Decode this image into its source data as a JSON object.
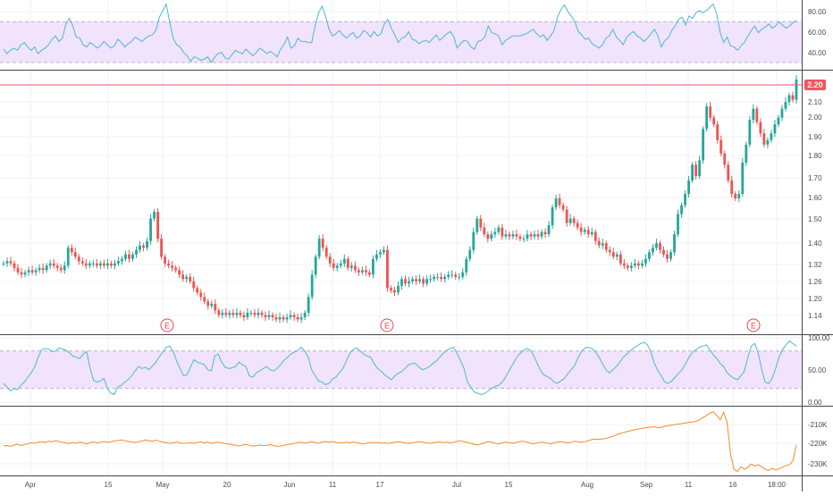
{
  "colors": {
    "background": "#ffffff",
    "grid": "#eef1f5",
    "divider": "#434651",
    "up_candle": "#26a69a",
    "down_candle": "#ef5350",
    "rsi_line": "#4bb8d4",
    "band_fill": "#f1e3fc",
    "band_line": "#b9b3c4",
    "obv_line": "#f28c28",
    "price_line": "#f7525f",
    "axis_text": "#4a4a4a",
    "earnings_marker": "#e8484f"
  },
  "x_axis": {
    "labels": [
      "Apr",
      "15",
      "May",
      "20",
      "Jun",
      "11",
      "17",
      "Jul",
      "15",
      "Aug",
      "Sep",
      "11",
      "16",
      "18:00"
    ]
  },
  "earnings_markers": [
    "E",
    "E",
    "E"
  ],
  "current_price_label": "2.20",
  "chart_data": [
    {
      "type": "line",
      "pane": "oscillator-top",
      "ylim": [
        28,
        88
      ],
      "ticks": [
        "40.00",
        "60.00",
        "80.00"
      ],
      "band": [
        33,
        70
      ],
      "series": [
        {
          "values": [
            45,
            41,
            44,
            46,
            44,
            49,
            51,
            47,
            44,
            47,
            41,
            44,
            46,
            49,
            54,
            57,
            52,
            55,
            68,
            73,
            66,
            56,
            55,
            49,
            47,
            51,
            49,
            46,
            48,
            52,
            49,
            46,
            48,
            54,
            51,
            47,
            50,
            52,
            56,
            54,
            52,
            55,
            57,
            58,
            62,
            74,
            80,
            86,
            69,
            55,
            49,
            47,
            42,
            39,
            34,
            38,
            37,
            35,
            36,
            38,
            33,
            38,
            41,
            42,
            37,
            36,
            40,
            44,
            42,
            41,
            45,
            42,
            39,
            42,
            46,
            44,
            41,
            43,
            41,
            38,
            45,
            49,
            56,
            46,
            48,
            55,
            52,
            52,
            51,
            51,
            66,
            78,
            84,
            75,
            63,
            57,
            59,
            62,
            58,
            55,
            58,
            60,
            55,
            57,
            62,
            60,
            56,
            61,
            57,
            59,
            68,
            72,
            64,
            58,
            51,
            55,
            56,
            61,
            54,
            53,
            50,
            52,
            53,
            51,
            55,
            58,
            53,
            56,
            59,
            61,
            57,
            46,
            50,
            53,
            52,
            47,
            45,
            52,
            53,
            56,
            66,
            60,
            59,
            57,
            49,
            53,
            55,
            57,
            57,
            57,
            58,
            59,
            61,
            63,
            59,
            56,
            58,
            53,
            57,
            62,
            74,
            81,
            85,
            79,
            75,
            70,
            61,
            58,
            54,
            55,
            50,
            48,
            46,
            49,
            55,
            57,
            63,
            56,
            53,
            49,
            56,
            59,
            61,
            57,
            55,
            52,
            55,
            59,
            63,
            57,
            47,
            53,
            55,
            62,
            66,
            72,
            74,
            67,
            75,
            73,
            78,
            80,
            78,
            80,
            83,
            86,
            77,
            60,
            51,
            56,
            48,
            47,
            44,
            48,
            51,
            57,
            62,
            66,
            60,
            63,
            65,
            68,
            64,
            66,
            70,
            67,
            64,
            66,
            69,
            71
          ]
        }
      ]
    },
    {
      "type": "bar",
      "pane": "price",
      "subtype": "candlestick",
      "ylim": [
        1.08,
        2.22
      ],
      "ticks": [
        "1.14",
        "1.20",
        "1.26",
        "1.32",
        "1.40",
        "1.50",
        "1.60",
        "1.70",
        "1.80",
        "1.90",
        "2.00",
        "2.10",
        "2.20"
      ],
      "series": [
        {
          "name": "close",
          "values": [
            1.38,
            1.39,
            1.38,
            1.36,
            1.34,
            1.33,
            1.34,
            1.35,
            1.34,
            1.35,
            1.36,
            1.35,
            1.37,
            1.38,
            1.37,
            1.36,
            1.35,
            1.37,
            1.45,
            1.43,
            1.41,
            1.39,
            1.38,
            1.37,
            1.38,
            1.38,
            1.37,
            1.38,
            1.37,
            1.38,
            1.37,
            1.38,
            1.39,
            1.4,
            1.42,
            1.4,
            1.42,
            1.44,
            1.46,
            1.45,
            1.48,
            1.58,
            1.61,
            1.49,
            1.41,
            1.38,
            1.37,
            1.36,
            1.35,
            1.33,
            1.31,
            1.32,
            1.3,
            1.27,
            1.25,
            1.23,
            1.21,
            1.19,
            1.2,
            1.17,
            1.15,
            1.16,
            1.15,
            1.16,
            1.15,
            1.16,
            1.15,
            1.14,
            1.16,
            1.16,
            1.15,
            1.16,
            1.15,
            1.14,
            1.15,
            1.14,
            1.13,
            1.14,
            1.13,
            1.14,
            1.15,
            1.14,
            1.13,
            1.14,
            1.16,
            1.23,
            1.33,
            1.41,
            1.49,
            1.45,
            1.41,
            1.38,
            1.36,
            1.37,
            1.38,
            1.4,
            1.36,
            1.37,
            1.35,
            1.34,
            1.35,
            1.34,
            1.33,
            1.4,
            1.42,
            1.43,
            1.44,
            1.27,
            1.26,
            1.25,
            1.28,
            1.31,
            1.29,
            1.3,
            1.31,
            1.3,
            1.31,
            1.29,
            1.31,
            1.31,
            1.32,
            1.32,
            1.31,
            1.32,
            1.33,
            1.33,
            1.32,
            1.32,
            1.34,
            1.4,
            1.44,
            1.52,
            1.58,
            1.54,
            1.51,
            1.49,
            1.51,
            1.52,
            1.54,
            1.5,
            1.51,
            1.5,
            1.51,
            1.5,
            1.49,
            1.49,
            1.51,
            1.5,
            1.51,
            1.5,
            1.52,
            1.51,
            1.55,
            1.63,
            1.67,
            1.64,
            1.62,
            1.56,
            1.58,
            1.56,
            1.54,
            1.52,
            1.53,
            1.51,
            1.52,
            1.48,
            1.46,
            1.47,
            1.44,
            1.43,
            1.41,
            1.42,
            1.38,
            1.37,
            1.36,
            1.37,
            1.38,
            1.37,
            1.38,
            1.4,
            1.43,
            1.45,
            1.47,
            1.44,
            1.42,
            1.4,
            1.43,
            1.51,
            1.6,
            1.64,
            1.69,
            1.75,
            1.82,
            1.77,
            1.84,
            1.98,
            2.08,
            2.03,
            2.0,
            1.93,
            1.87,
            1.82,
            1.75,
            1.69,
            1.67,
            1.69,
            1.83,
            1.91,
            2.02,
            2.07,
            2.01,
            1.96,
            1.91,
            1.93,
            1.96,
            2.0,
            2.03,
            2.07,
            2.1,
            2.13,
            2.11,
            2.2
          ]
        }
      ]
    },
    {
      "type": "line",
      "pane": "oscillator-middle",
      "ylim": [
        -5,
        104
      ],
      "ticks": [
        "0.00",
        "50.00",
        "100.00"
      ],
      "band": [
        20,
        80
      ],
      "series": [
        {
          "values": [
            28,
            22,
            16,
            20,
            18,
            25,
            30,
            38,
            45,
            55,
            70,
            82,
            84,
            83,
            79,
            80,
            85,
            83,
            81,
            77,
            72,
            70,
            68,
            75,
            79,
            52,
            33,
            30,
            32,
            36,
            20,
            12,
            10,
            22,
            25,
            30,
            34,
            40,
            48,
            55,
            52,
            54,
            50,
            56,
            62,
            71,
            78,
            86,
            88,
            79,
            64,
            52,
            40,
            42,
            55,
            66,
            62,
            60,
            58,
            50,
            48,
            72,
            75,
            62,
            54,
            52,
            53,
            55,
            62,
            58,
            55,
            40,
            38,
            45,
            48,
            52,
            55,
            50,
            48,
            52,
            58,
            65,
            70,
            75,
            78,
            81,
            86,
            80,
            70,
            50,
            40,
            32,
            30,
            26,
            28,
            35,
            38,
            45,
            52,
            64,
            76,
            82,
            85,
            80,
            75,
            72,
            70,
            60,
            52,
            48,
            42,
            38,
            34,
            40,
            44,
            47,
            52,
            58,
            60,
            60,
            54,
            50,
            52,
            55,
            60,
            64,
            70,
            76,
            81,
            84,
            86,
            76,
            64,
            52,
            30,
            22,
            14,
            12,
            10,
            12,
            16,
            20,
            23,
            25,
            30,
            38,
            48,
            58,
            68,
            75,
            80,
            84,
            82,
            74,
            62,
            50,
            42,
            39,
            36,
            30,
            28,
            32,
            36,
            44,
            50,
            57,
            70,
            80,
            85,
            86,
            84,
            78,
            70,
            60,
            50,
            45,
            50,
            55,
            62,
            70,
            75,
            80,
            85,
            88,
            92,
            94,
            90,
            78,
            60,
            48,
            40,
            30,
            28,
            32,
            38,
            44,
            50,
            60,
            70,
            78,
            82,
            86,
            88,
            90,
            82,
            74,
            68,
            60,
            55,
            45,
            40,
            36,
            34,
            40,
            48,
            70,
            88,
            92,
            76,
            50,
            30,
            28,
            36,
            52,
            70,
            82,
            90,
            96,
            92,
            88
          ]
        }
      ]
    },
    {
      "type": "line",
      "pane": "volume-indicator",
      "ylim": [
        -234000,
        -203000
      ],
      "ticks": [
        "-230K",
        "-220K",
        "-210K"
      ],
      "series": [
        {
          "values": [
            -221000,
            -220800,
            -221200,
            -220600,
            -220200,
            -220800,
            -220400,
            -220000,
            -219500,
            -219800,
            -219200,
            -219000,
            -219400,
            -218800,
            -219100,
            -218500,
            -218900,
            -219300,
            -219600,
            -219900,
            -219400,
            -219800,
            -219200,
            -219600,
            -220000,
            -219500,
            -219100,
            -219700,
            -219200,
            -218900,
            -219400,
            -219000,
            -218700,
            -218500,
            -218200,
            -218600,
            -218900,
            -219100,
            -219400,
            -219000,
            -218700,
            -218200,
            -218600,
            -218900,
            -218300,
            -218800,
            -219200,
            -219500,
            -219800,
            -219600,
            -219200,
            -219600,
            -219900,
            -219700,
            -219500,
            -219800,
            -219400,
            -219100,
            -219600,
            -219200,
            -219800,
            -219500,
            -219200,
            -219600,
            -219900,
            -220100,
            -220400,
            -220700,
            -221000,
            -220600,
            -220300,
            -220700,
            -221100,
            -220800,
            -220600,
            -220900,
            -220700,
            -220400,
            -220800,
            -221200,
            -221000,
            -220700,
            -220400,
            -220100,
            -219800,
            -219500,
            -219300,
            -219700,
            -219400,
            -219100,
            -219500,
            -219800,
            -219200,
            -218900,
            -219300,
            -219000,
            -219400,
            -219700,
            -219500,
            -219200,
            -219600,
            -219100,
            -219500,
            -219800,
            -220100,
            -219700,
            -219300,
            -219700,
            -219400,
            -219800,
            -219500,
            -219900,
            -219600,
            -219300,
            -219000,
            -219300,
            -219600,
            -219900,
            -219600,
            -219300,
            -219000,
            -219200,
            -219500,
            -219800,
            -219600,
            -219300,
            -219100,
            -219500,
            -219200,
            -219600,
            -219300,
            -218900,
            -218500,
            -219100,
            -219400,
            -219800,
            -220200,
            -220500,
            -220000,
            -219500,
            -219000,
            -219300,
            -219700,
            -220000,
            -219600,
            -219200,
            -219500,
            -219800,
            -219400,
            -219000,
            -218800,
            -219200,
            -219600,
            -220000,
            -219600,
            -219200,
            -219400,
            -219700,
            -220000,
            -219600,
            -219200,
            -219000,
            -219300,
            -219600,
            -219200,
            -218800,
            -219000,
            -219300,
            -219000,
            -218500,
            -218000,
            -217800,
            -218000,
            -217700,
            -217500,
            -217000,
            -216500,
            -215800,
            -215200,
            -214800,
            -214300,
            -213900,
            -213500,
            -213200,
            -212900,
            -212600,
            -212400,
            -212200,
            -212000,
            -212500,
            -212200,
            -211800,
            -211500,
            -211200,
            -211000,
            -210800,
            -210500,
            -210200,
            -209900,
            -209800,
            -209500,
            -208800,
            -207700,
            -206800,
            -205600,
            -205000,
            -206700,
            -208800,
            -205200,
            -210000,
            -225000,
            -232000,
            -233000,
            -230800,
            -232000,
            -231000,
            -229500,
            -230500,
            -229800,
            -230800,
            -232000,
            -232500,
            -231500,
            -232300,
            -231800,
            -230800,
            -230300,
            -229800,
            -228000,
            -220500
          ]
        }
      ]
    }
  ]
}
